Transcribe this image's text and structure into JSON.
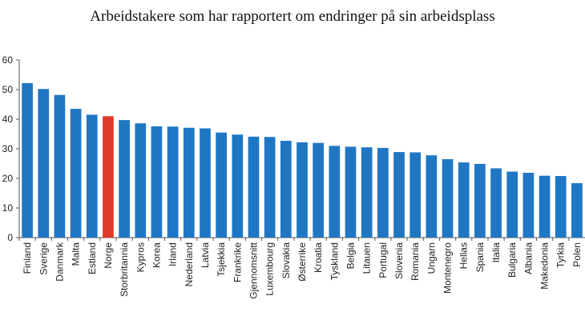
{
  "chart_data": {
    "type": "bar",
    "title": "Arbeidstakere som har rapportert om endringer på sin arbeidsplass",
    "xlabel": "",
    "ylabel": "",
    "ylim": [
      0,
      60
    ],
    "yticks": [
      0,
      10,
      20,
      30,
      40,
      50,
      60
    ],
    "grid": false,
    "legend": "none",
    "colors": {
      "default": "#1f77c4",
      "highlight": "#e03a2b"
    },
    "highlight_category": "Norge",
    "categories": [
      "Finland",
      "Sverige",
      "Danmark",
      "Malta",
      "Estland",
      "Norge",
      "Storbritannia",
      "Kypros",
      "Korea",
      "Irland",
      "Nederland",
      "Latvia",
      "Tsjekkia",
      "Frankrike",
      "Gjennomsnitt",
      "Luxembourg",
      "Slovakia",
      "Østerrike",
      "Kroatia",
      "Tyskland",
      "Belgia",
      "Litauen",
      "Portugal",
      "Slovenia",
      "Romania",
      "Ungarn",
      "Montenegro",
      "Hellas",
      "Spania",
      "Italia",
      "Bulgaria",
      "Albania",
      "Makedonia",
      "Tyrkia",
      "Polen"
    ],
    "values": [
      52.2,
      50.2,
      48.2,
      43.5,
      41.5,
      41.0,
      39.7,
      38.6,
      37.6,
      37.5,
      37.1,
      36.9,
      35.5,
      34.8,
      34.1,
      34.0,
      32.7,
      32.2,
      32.0,
      31.0,
      30.7,
      30.5,
      30.3,
      28.9,
      28.8,
      27.8,
      26.5,
      25.4,
      24.9,
      23.4,
      22.3,
      21.9,
      20.9,
      20.8,
      18.4
    ]
  }
}
